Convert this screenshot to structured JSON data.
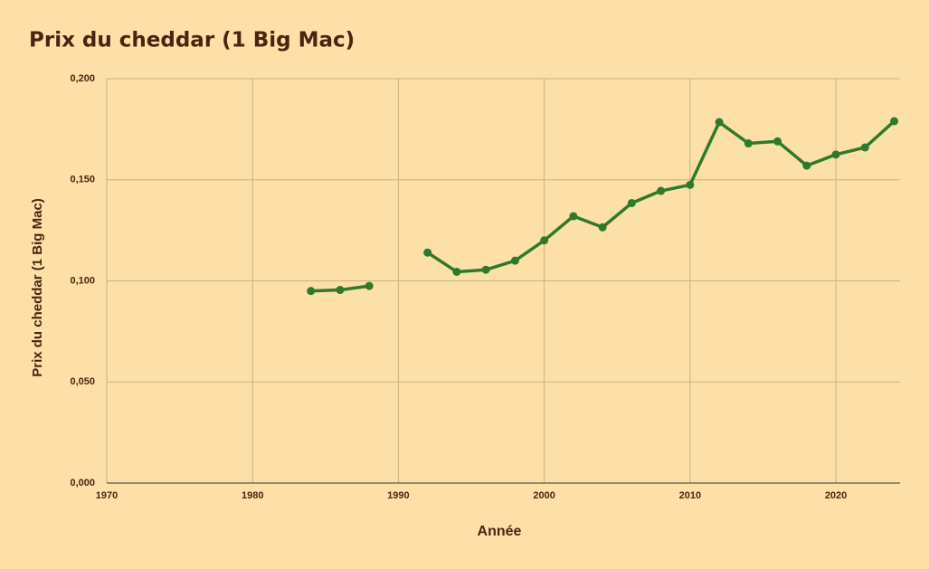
{
  "chart_data": {
    "type": "line",
    "title": "Prix du cheddar (1 Big Mac)",
    "x_label": "Année",
    "y_label": "Prix du cheddar (1 Big Mac)",
    "x": [
      1984,
      1986,
      1988,
      1990,
      1992,
      1994,
      1996,
      1998,
      2000,
      2002,
      2004,
      2006,
      2008,
      2010,
      2012,
      2014,
      2016,
      2018,
      2020,
      2022,
      2024
    ],
    "series": [
      {
        "name": "Prix du cheddar (1 Big Mac)",
        "color": "#2e7a2c",
        "values": [
          0.095,
          0.0955,
          0.0975,
          null,
          0.114,
          0.1045,
          0.1055,
          0.11,
          0.12,
          0.132,
          0.1265,
          0.1385,
          0.1445,
          0.1475,
          0.1785,
          0.168,
          0.169,
          0.157,
          0.1625,
          0.166,
          0.179
        ]
      }
    ],
    "xlim": [
      1970,
      2024.4
    ],
    "xticks": [
      1970,
      1980,
      1990,
      2000,
      2010,
      2020
    ],
    "ylim": [
      0,
      0.2
    ],
    "yticks": [
      {
        "value": 0,
        "label": "0,000"
      },
      {
        "value": 0.05,
        "label": "0,050"
      },
      {
        "value": 0.1,
        "label": "0,100"
      },
      {
        "value": 0.15,
        "label": "0,150"
      },
      {
        "value": 0.2,
        "label": "0,200"
      }
    ],
    "grid": true
  }
}
